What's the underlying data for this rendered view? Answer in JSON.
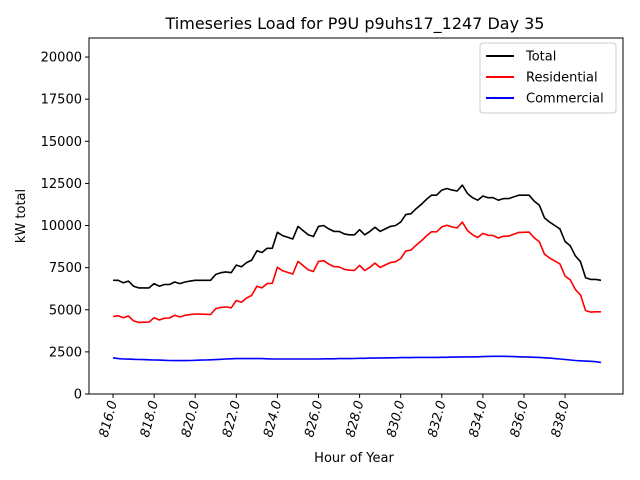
{
  "chart_data": {
    "type": "line",
    "title": "Timeseries Load for P9U p9uhs17_1247  Day 35",
    "xlabel": "Hour of Year",
    "ylabel": "kW total",
    "xlim": [
      814.83,
      840.82
    ],
    "ylim": [
      0,
      21130
    ],
    "x_start": 816.0,
    "x_step": 0.25,
    "xticks": [
      816,
      818,
      820,
      822,
      824,
      826,
      828,
      830,
      832,
      834,
      836,
      838
    ],
    "xtick_labels": [
      "816.0",
      "818.0",
      "820.0",
      "822.0",
      "824.0",
      "826.0",
      "828.0",
      "830.0",
      "832.0",
      "834.0",
      "836.0",
      "838.0"
    ],
    "yticks": [
      0,
      2500,
      5000,
      7500,
      10000,
      12500,
      15000,
      17500,
      20000
    ],
    "ytick_labels": [
      "0",
      "2500",
      "5000",
      "7500",
      "10000",
      "12500",
      "15000",
      "17500",
      "20000"
    ],
    "grid": false,
    "legend_position": "top-right",
    "series": [
      {
        "name": "Total",
        "color": "#000000",
        "values": [
          6750,
          6750,
          6600,
          6700,
          6400,
          6300,
          6300,
          6300,
          6550,
          6400,
          6500,
          6500,
          6650,
          6550,
          6650,
          6700,
          6750,
          6750,
          6750,
          6750,
          7100,
          7200,
          7250,
          7200,
          7650,
          7550,
          7800,
          7950,
          8500,
          8400,
          8650,
          8650,
          9600,
          9400,
          9300,
          9200,
          9950,
          9700,
          9450,
          9350,
          9950,
          10000,
          9800,
          9650,
          9650,
          9500,
          9450,
          9450,
          9750,
          9450,
          9650,
          9900,
          9650,
          9800,
          9950,
          10000,
          10200,
          10650,
          10700,
          11000,
          11250,
          11550,
          11800,
          11800,
          12100,
          12200,
          12100,
          12050,
          12400,
          11900,
          11650,
          11500,
          11750,
          11650,
          11650,
          11500,
          11600,
          11600,
          11700,
          11800,
          11800,
          11800,
          11450,
          11200,
          10450,
          10200,
          10000,
          9800,
          9050,
          8800,
          8200,
          7850,
          6900,
          6800,
          6800,
          6750
        ]
      },
      {
        "name": "Residential",
        "color": "#ff0000",
        "values": [
          4600,
          4650,
          4520,
          4630,
          4340,
          4250,
          4260,
          4270,
          4530,
          4390,
          4500,
          4510,
          4670,
          4570,
          4670,
          4710,
          4750,
          4740,
          4730,
          4720,
          5060,
          5140,
          5170,
          5110,
          5550,
          5450,
          5700,
          5850,
          6400,
          6300,
          6560,
          6570,
          7520,
          7320,
          7220,
          7120,
          7870,
          7620,
          7370,
          7270,
          7870,
          7910,
          7710,
          7560,
          7550,
          7400,
          7350,
          7340,
          7630,
          7330,
          7520,
          7770,
          7510,
          7660,
          7800,
          7850,
          8040,
          8490,
          8540,
          8830,
          9080,
          9380,
          9630,
          9630,
          9920,
          10020,
          9910,
          9860,
          10200,
          9700,
          9450,
          9290,
          9530,
          9420,
          9410,
          9260,
          9360,
          9370,
          9480,
          9590,
          9600,
          9610,
          9270,
          9030,
          8300,
          8070,
          7900,
          7720,
          7000,
          6780,
          6210,
          5880,
          4950,
          4860,
          4880,
          4880
        ]
      },
      {
        "name": "Commercial",
        "color": "#0000ff",
        "values": [
          2150,
          2100,
          2080,
          2070,
          2060,
          2050,
          2040,
          2030,
          2020,
          2010,
          2000,
          1990,
          1980,
          1980,
          1980,
          1990,
          2000,
          2010,
          2020,
          2030,
          2040,
          2060,
          2080,
          2090,
          2100,
          2100,
          2100,
          2100,
          2100,
          2100,
          2090,
          2080,
          2080,
          2080,
          2080,
          2080,
          2080,
          2080,
          2080,
          2080,
          2080,
          2090,
          2090,
          2090,
          2100,
          2100,
          2100,
          2110,
          2120,
          2120,
          2130,
          2130,
          2140,
          2140,
          2150,
          2150,
          2160,
          2160,
          2160,
          2170,
          2170,
          2170,
          2170,
          2170,
          2180,
          2180,
          2190,
          2190,
          2200,
          2200,
          2200,
          2210,
          2220,
          2230,
          2240,
          2240,
          2240,
          2230,
          2220,
          2210,
          2200,
          2190,
          2180,
          2170,
          2150,
          2130,
          2100,
          2080,
          2050,
          2020,
          1990,
          1970,
          1950,
          1940,
          1920,
          1870
        ]
      }
    ]
  }
}
